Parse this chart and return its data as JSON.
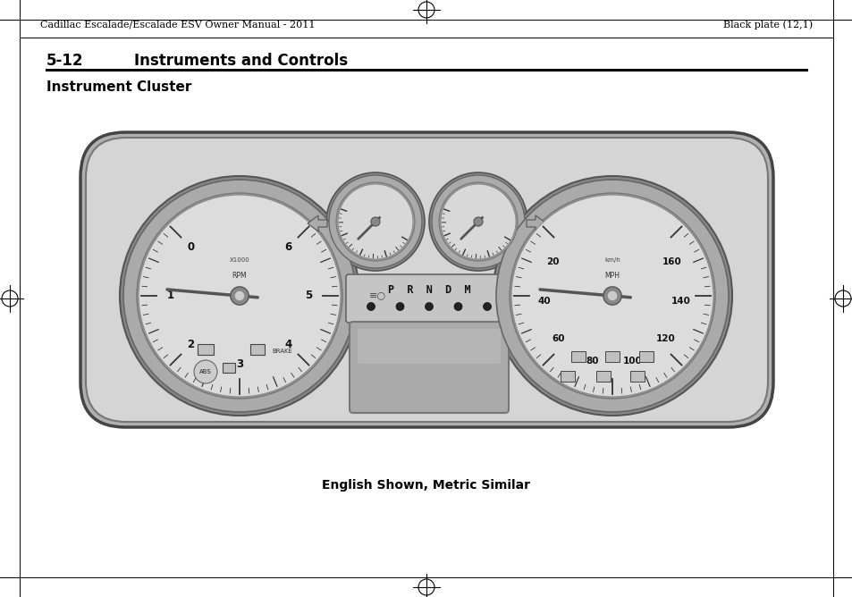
{
  "bg_color": "#ffffff",
  "header_left": "Cadillac Escalade/Escalade ESV Owner Manual - 2011",
  "header_right": "Black plate (12,1)",
  "section_number": "5-12",
  "section_title": "Instruments and Controls",
  "page_subtitle": "Instrument Cluster",
  "caption": "English Shown, Metric Similar",
  "caption_fontsize": 10,
  "header_fontsize": 8,
  "section_fontsize": 12,
  "subtitle_fontsize": 11,
  "text_color": "#000000",
  "cluster_bg": "#c8c8c8",
  "cluster_face": "#e0e0e0",
  "gauge_ring": "#999999",
  "gauge_face": "#d8d8d8",
  "tacho_nums": [
    0,
    1,
    2,
    3,
    4,
    5,
    6
  ],
  "speedo_nums": [
    20,
    40,
    60,
    80,
    100,
    120,
    140,
    160
  ],
  "prndm_text": "P  R  N  D  M"
}
